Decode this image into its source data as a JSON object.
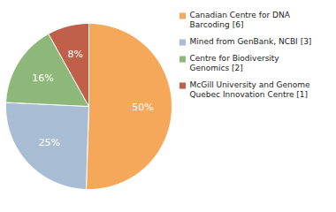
{
  "chart_data": {
    "type": "pie",
    "categories": [
      "Canadian Centre for DNA\nBarcoding [6]",
      "Mined from GenBank, NCBI [3]",
      "Centre for Biodiversity\nGenomics [2]",
      "McGill University and Genome\nQuebec Innovation Centre [1]"
    ],
    "values": [
      50,
      25,
      16,
      8
    ],
    "value_labels": [
      "50%",
      "25%",
      "16%",
      "8%"
    ],
    "colors": [
      "#F5A85A",
      "#A8BDD4",
      "#8DB87A",
      "#C0604A"
    ],
    "data_labels": true,
    "legend": "right"
  }
}
